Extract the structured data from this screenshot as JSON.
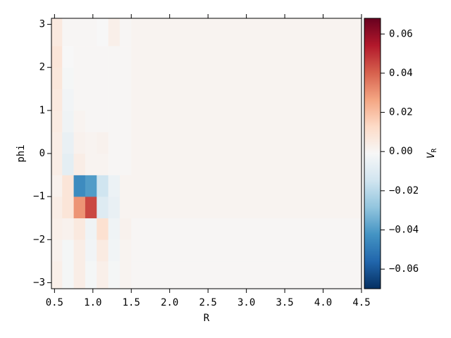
{
  "chart_data": {
    "type": "heatmap",
    "xlabel": "R",
    "ylabel": "phi",
    "xbins": [
      0.46,
      0.6,
      0.75,
      0.9,
      1.05,
      1.2,
      1.35,
      1.5,
      4.5
    ],
    "ybins": [
      -3.14,
      -2.5,
      -2,
      -1.5,
      -1,
      -0.5,
      0,
      0.5,
      1,
      1.5,
      2,
      2.5,
      3.14
    ],
    "z": [
      [
        0.003,
        -0.002,
        0.004,
        -0.002,
        0.003,
        -0.002,
        0.001,
        0
      ],
      [
        0.002,
        -0.002,
        0.004,
        -0.003,
        0.005,
        -0.003,
        0.001,
        0
      ],
      [
        0.003,
        0.002,
        0.006,
        -0.004,
        0.01,
        -0.004,
        0.002,
        0
      ],
      [
        0.004,
        0.008,
        0.03,
        0.045,
        -0.01,
        -0.006,
        0.001,
        0.001
      ],
      [
        0.002,
        0.008,
        -0.045,
        -0.04,
        -0.015,
        -0.005,
        0.001,
        0.001
      ],
      [
        0.004,
        -0.008,
        0.004,
        0.001,
        0.001,
        0,
        0,
        0.001
      ],
      [
        0.004,
        -0.006,
        0.002,
        0.001,
        0.002,
        0,
        0,
        0.001
      ],
      [
        0.005,
        -0.004,
        0.001,
        0,
        0,
        0,
        0,
        0.001
      ],
      [
        0.006,
        -0.003,
        0,
        0,
        0,
        0,
        0,
        0.001
      ],
      [
        0.007,
        -0.002,
        0,
        0,
        0,
        0,
        0,
        0.001
      ],
      [
        0.008,
        -0.001,
        0,
        0,
        0,
        0,
        0,
        0.001
      ],
      [
        0.006,
        0,
        0,
        0,
        -0.001,
        0.003,
        0,
        0.001
      ]
    ],
    "xlim": [
      0.46,
      4.5
    ],
    "xticks": [
      0.5,
      {
        "value": 1,
        "label": "1.0"
      },
      1.5,
      {
        "value": 2,
        "label": "2.0"
      },
      2.5,
      {
        "value": 3,
        "label": "3.0"
      },
      3.5,
      {
        "value": 4,
        "label": "4.0"
      },
      4.5
    ],
    "ylim": [
      -3.14,
      3.14
    ],
    "yticks": [
      {
        "value": -3,
        "label": "−3"
      },
      {
        "value": -2,
        "label": "−2"
      },
      {
        "value": -1,
        "label": "−1"
      },
      0,
      1,
      2,
      3
    ],
    "zlim": [
      -0.07,
      0.068
    ],
    "zticks": [
      {
        "value": -0.06,
        "label": "−0.06"
      },
      {
        "value": -0.04,
        "label": "−0.04"
      },
      {
        "value": -0.02,
        "label": "−0.02"
      },
      {
        "value": 0,
        "label": "0.00"
      },
      {
        "value": 0.02,
        "label": "0.02"
      },
      {
        "value": 0.04,
        "label": "0.04"
      },
      {
        "value": 0.06,
        "label": "0.06"
      }
    ],
    "colorbar_label": {
      "base": "V",
      "sub": "R"
    },
    "colormap": [
      "#053061",
      "#2166ac",
      "#4393c3",
      "#92c5de",
      "#d1e5f0",
      "#f7f7f7",
      "#fddbc7",
      "#f4a582",
      "#d6604d",
      "#b2182b",
      "#67001f"
    ]
  }
}
